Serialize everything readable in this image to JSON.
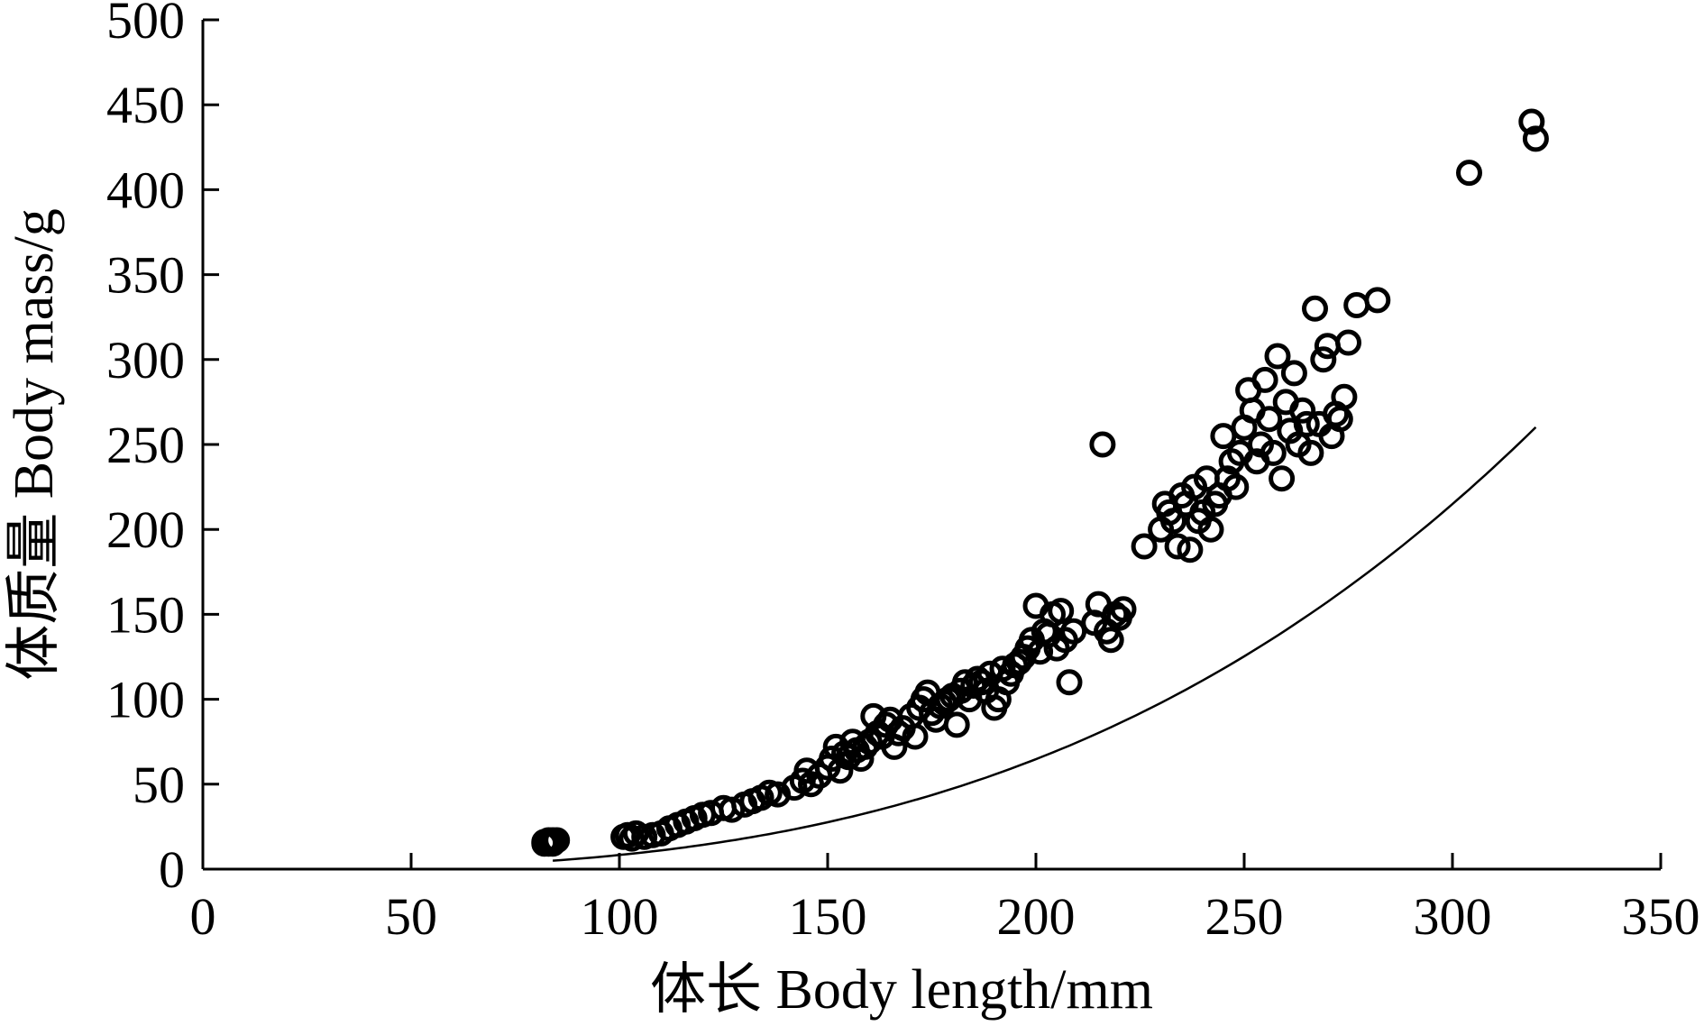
{
  "chart_data": {
    "type": "scatter",
    "xlabel": "体长 Body length/mm",
    "ylabel": "体质量 Body mass/g",
    "xlim": [
      0,
      350
    ],
    "ylim": [
      0,
      500
    ],
    "xticks": [
      "0",
      "50",
      "100",
      "150",
      "200",
      "250",
      "300",
      "350"
    ],
    "yticks": [
      "0",
      "50",
      "100",
      "150",
      "200",
      "250",
      "300",
      "350",
      "400",
      "450",
      "500"
    ],
    "grid": false,
    "marker": "open-circle",
    "fit_curve": {
      "type": "power",
      "a": 1e-05,
      "b": 2.96
    },
    "points": [
      [
        82,
        16
      ],
      [
        83,
        17
      ],
      [
        84,
        15
      ],
      [
        85,
        17
      ],
      [
        83,
        15
      ],
      [
        84,
        17
      ],
      [
        82,
        15
      ],
      [
        101,
        19
      ],
      [
        102,
        20
      ],
      [
        103,
        18
      ],
      [
        104,
        21
      ],
      [
        106,
        19
      ],
      [
        108,
        20
      ],
      [
        110,
        21
      ],
      [
        112,
        24
      ],
      [
        114,
        26
      ],
      [
        116,
        28
      ],
      [
        118,
        30
      ],
      [
        120,
        32
      ],
      [
        122,
        33
      ],
      [
        125,
        36
      ],
      [
        127,
        35
      ],
      [
        130,
        38
      ],
      [
        132,
        40
      ],
      [
        134,
        42
      ],
      [
        136,
        45
      ],
      [
        138,
        44
      ],
      [
        142,
        48
      ],
      [
        144,
        52
      ],
      [
        145,
        58
      ],
      [
        146,
        50
      ],
      [
        148,
        55
      ],
      [
        150,
        60
      ],
      [
        151,
        65
      ],
      [
        152,
        72
      ],
      [
        153,
        58
      ],
      [
        154,
        68
      ],
      [
        155,
        66
      ],
      [
        156,
        75
      ],
      [
        157,
        70
      ],
      [
        158,
        65
      ],
      [
        159,
        72
      ],
      [
        160,
        75
      ],
      [
        161,
        90
      ],
      [
        162,
        80
      ],
      [
        163,
        78
      ],
      [
        164,
        85
      ],
      [
        165,
        88
      ],
      [
        166,
        72
      ],
      [
        167,
        80
      ],
      [
        168,
        83
      ],
      [
        170,
        90
      ],
      [
        171,
        78
      ],
      [
        172,
        95
      ],
      [
        173,
        100
      ],
      [
        174,
        104
      ],
      [
        175,
        92
      ],
      [
        176,
        88
      ],
      [
        177,
        96
      ],
      [
        178,
        98
      ],
      [
        179,
        100
      ],
      [
        180,
        102
      ],
      [
        181,
        85
      ],
      [
        182,
        105
      ],
      [
        183,
        110
      ],
      [
        184,
        100
      ],
      [
        185,
        108
      ],
      [
        186,
        112
      ],
      [
        187,
        110
      ],
      [
        188,
        105
      ],
      [
        189,
        115
      ],
      [
        190,
        95
      ],
      [
        191,
        100
      ],
      [
        192,
        118
      ],
      [
        193,
        110
      ],
      [
        194,
        115
      ],
      [
        195,
        120
      ],
      [
        196,
        122
      ],
      [
        197,
        125
      ],
      [
        198,
        130
      ],
      [
        199,
        135
      ],
      [
        200,
        155
      ],
      [
        201,
        128
      ],
      [
        202,
        140
      ],
      [
        203,
        138
      ],
      [
        204,
        150
      ],
      [
        205,
        130
      ],
      [
        206,
        152
      ],
      [
        207,
        135
      ],
      [
        208,
        110
      ],
      [
        209,
        140
      ],
      [
        214,
        145
      ],
      [
        215,
        156
      ],
      [
        216,
        250
      ],
      [
        217,
        140
      ],
      [
        218,
        135
      ],
      [
        219,
        150
      ],
      [
        220,
        148
      ],
      [
        221,
        153
      ],
      [
        226,
        190
      ],
      [
        230,
        200
      ],
      [
        231,
        215
      ],
      [
        232,
        210
      ],
      [
        233,
        205
      ],
      [
        234,
        190
      ],
      [
        235,
        220
      ],
      [
        236,
        215
      ],
      [
        237,
        188
      ],
      [
        238,
        225
      ],
      [
        239,
        205
      ],
      [
        240,
        210
      ],
      [
        241,
        230
      ],
      [
        242,
        200
      ],
      [
        243,
        215
      ],
      [
        244,
        220
      ],
      [
        245,
        255
      ],
      [
        246,
        230
      ],
      [
        247,
        240
      ],
      [
        248,
        225
      ],
      [
        249,
        245
      ],
      [
        250,
        260
      ],
      [
        251,
        282
      ],
      [
        252,
        270
      ],
      [
        253,
        240
      ],
      [
        254,
        250
      ],
      [
        255,
        288
      ],
      [
        256,
        265
      ],
      [
        257,
        245
      ],
      [
        258,
        302
      ],
      [
        259,
        230
      ],
      [
        260,
        275
      ],
      [
        261,
        258
      ],
      [
        262,
        292
      ],
      [
        263,
        250
      ],
      [
        264,
        270
      ],
      [
        265,
        262
      ],
      [
        266,
        245
      ],
      [
        267,
        330
      ],
      [
        268,
        262
      ],
      [
        269,
        300
      ],
      [
        270,
        308
      ],
      [
        271,
        255
      ],
      [
        272,
        268
      ],
      [
        273,
        265
      ],
      [
        274,
        278
      ],
      [
        275,
        310
      ],
      [
        277,
        332
      ],
      [
        282,
        335
      ],
      [
        304,
        410
      ],
      [
        319,
        440
      ],
      [
        320,
        430
      ]
    ]
  }
}
